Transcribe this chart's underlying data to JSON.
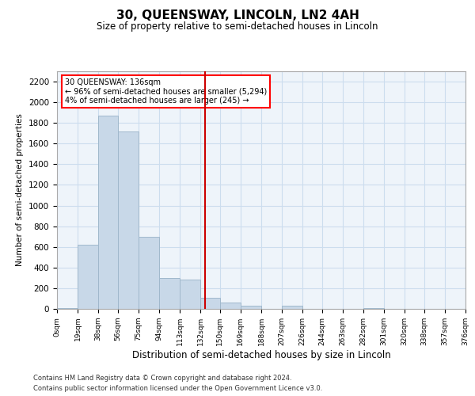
{
  "title": "30, QUEENSWAY, LINCOLN, LN2 4AH",
  "subtitle": "Size of property relative to semi-detached houses in Lincoln",
  "xlabel": "Distribution of semi-detached houses by size in Lincoln",
  "ylabel": "Number of semi-detached properties",
  "annotation_title": "30 QUEENSWAY: 136sqm",
  "annotation_line1": "← 96% of semi-detached houses are smaller (5,294)",
  "annotation_line2": "4% of semi-detached houses are larger (245) →",
  "footer1": "Contains HM Land Registry data © Crown copyright and database right 2024.",
  "footer2": "Contains public sector information licensed under the Open Government Licence v3.0.",
  "vline_x": 136,
  "bin_edges": [
    0,
    19,
    38,
    56,
    75,
    94,
    113,
    132,
    150,
    169,
    188,
    207,
    226,
    244,
    263,
    282,
    301,
    320,
    338,
    357,
    376
  ],
  "bar_values": [
    5,
    620,
    1870,
    1720,
    700,
    300,
    280,
    105,
    65,
    30,
    0,
    30,
    0,
    0,
    0,
    5,
    0,
    0,
    0,
    0
  ],
  "bar_color": "#c8d8e8",
  "bar_edgecolor": "#a0b8cc",
  "vline_color": "#cc0000",
  "grid_color": "#ccddee",
  "bg_color": "#eef4fa",
  "ylim": [
    0,
    2300
  ],
  "yticks": [
    0,
    200,
    400,
    600,
    800,
    1000,
    1200,
    1400,
    1600,
    1800,
    2000,
    2200
  ],
  "tick_labels": [
    "0sqm",
    "19sqm",
    "38sqm",
    "56sqm",
    "75sqm",
    "94sqm",
    "113sqm",
    "132sqm",
    "150sqm",
    "169sqm",
    "188sqm",
    "207sqm",
    "226sqm",
    "244sqm",
    "263sqm",
    "282sqm",
    "301sqm",
    "320sqm",
    "338sqm",
    "357sqm",
    "376sqm"
  ]
}
